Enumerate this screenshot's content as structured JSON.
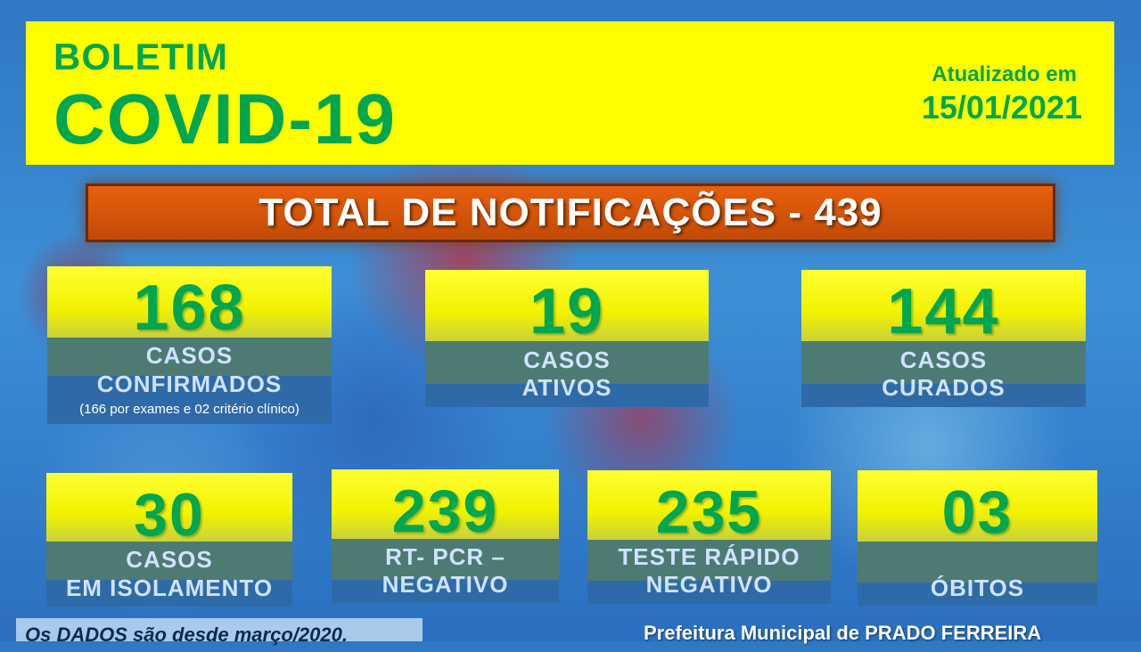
{
  "header": {
    "boletim": "BOLETIM",
    "title": "COVID-19",
    "updated_label": "Atualizado em",
    "updated_date": "15/01/2021"
  },
  "total": {
    "label": "TOTAL DE NOTIFICAÇÕES - 439"
  },
  "cards": {
    "confirmados": {
      "value": "168",
      "line1": "CASOS",
      "line2": "CONFIRMADOS",
      "note": "(166 por exames e 02 critério clínico)"
    },
    "ativos": {
      "value": "19",
      "line1": "CASOS",
      "line2": "ATIVOS"
    },
    "curados": {
      "value": "144",
      "line1": "CASOS",
      "line2": "CURADOS"
    },
    "isolamento": {
      "value": "30",
      "line1": "CASOS",
      "line2": "EM ISOLAMENTO"
    },
    "rtpcr": {
      "value": "239",
      "line1": "RT- PCR –",
      "line2": "NEGATIVO"
    },
    "teste_rapido": {
      "value": "235",
      "line1": "TESTE RÁPIDO",
      "line2": "NEGATIVO"
    },
    "obitos": {
      "value": "03",
      "line1": "",
      "line2": "ÓBITOS"
    }
  },
  "footer": {
    "left": "Os DADOS são desde março/2020.",
    "right": "Prefeitura Municipal de PRADO FERREIRA"
  },
  "colors": {
    "header_bg": "#ffff00",
    "accent_green": "#00a650",
    "total_bg": "#e8600e"
  }
}
